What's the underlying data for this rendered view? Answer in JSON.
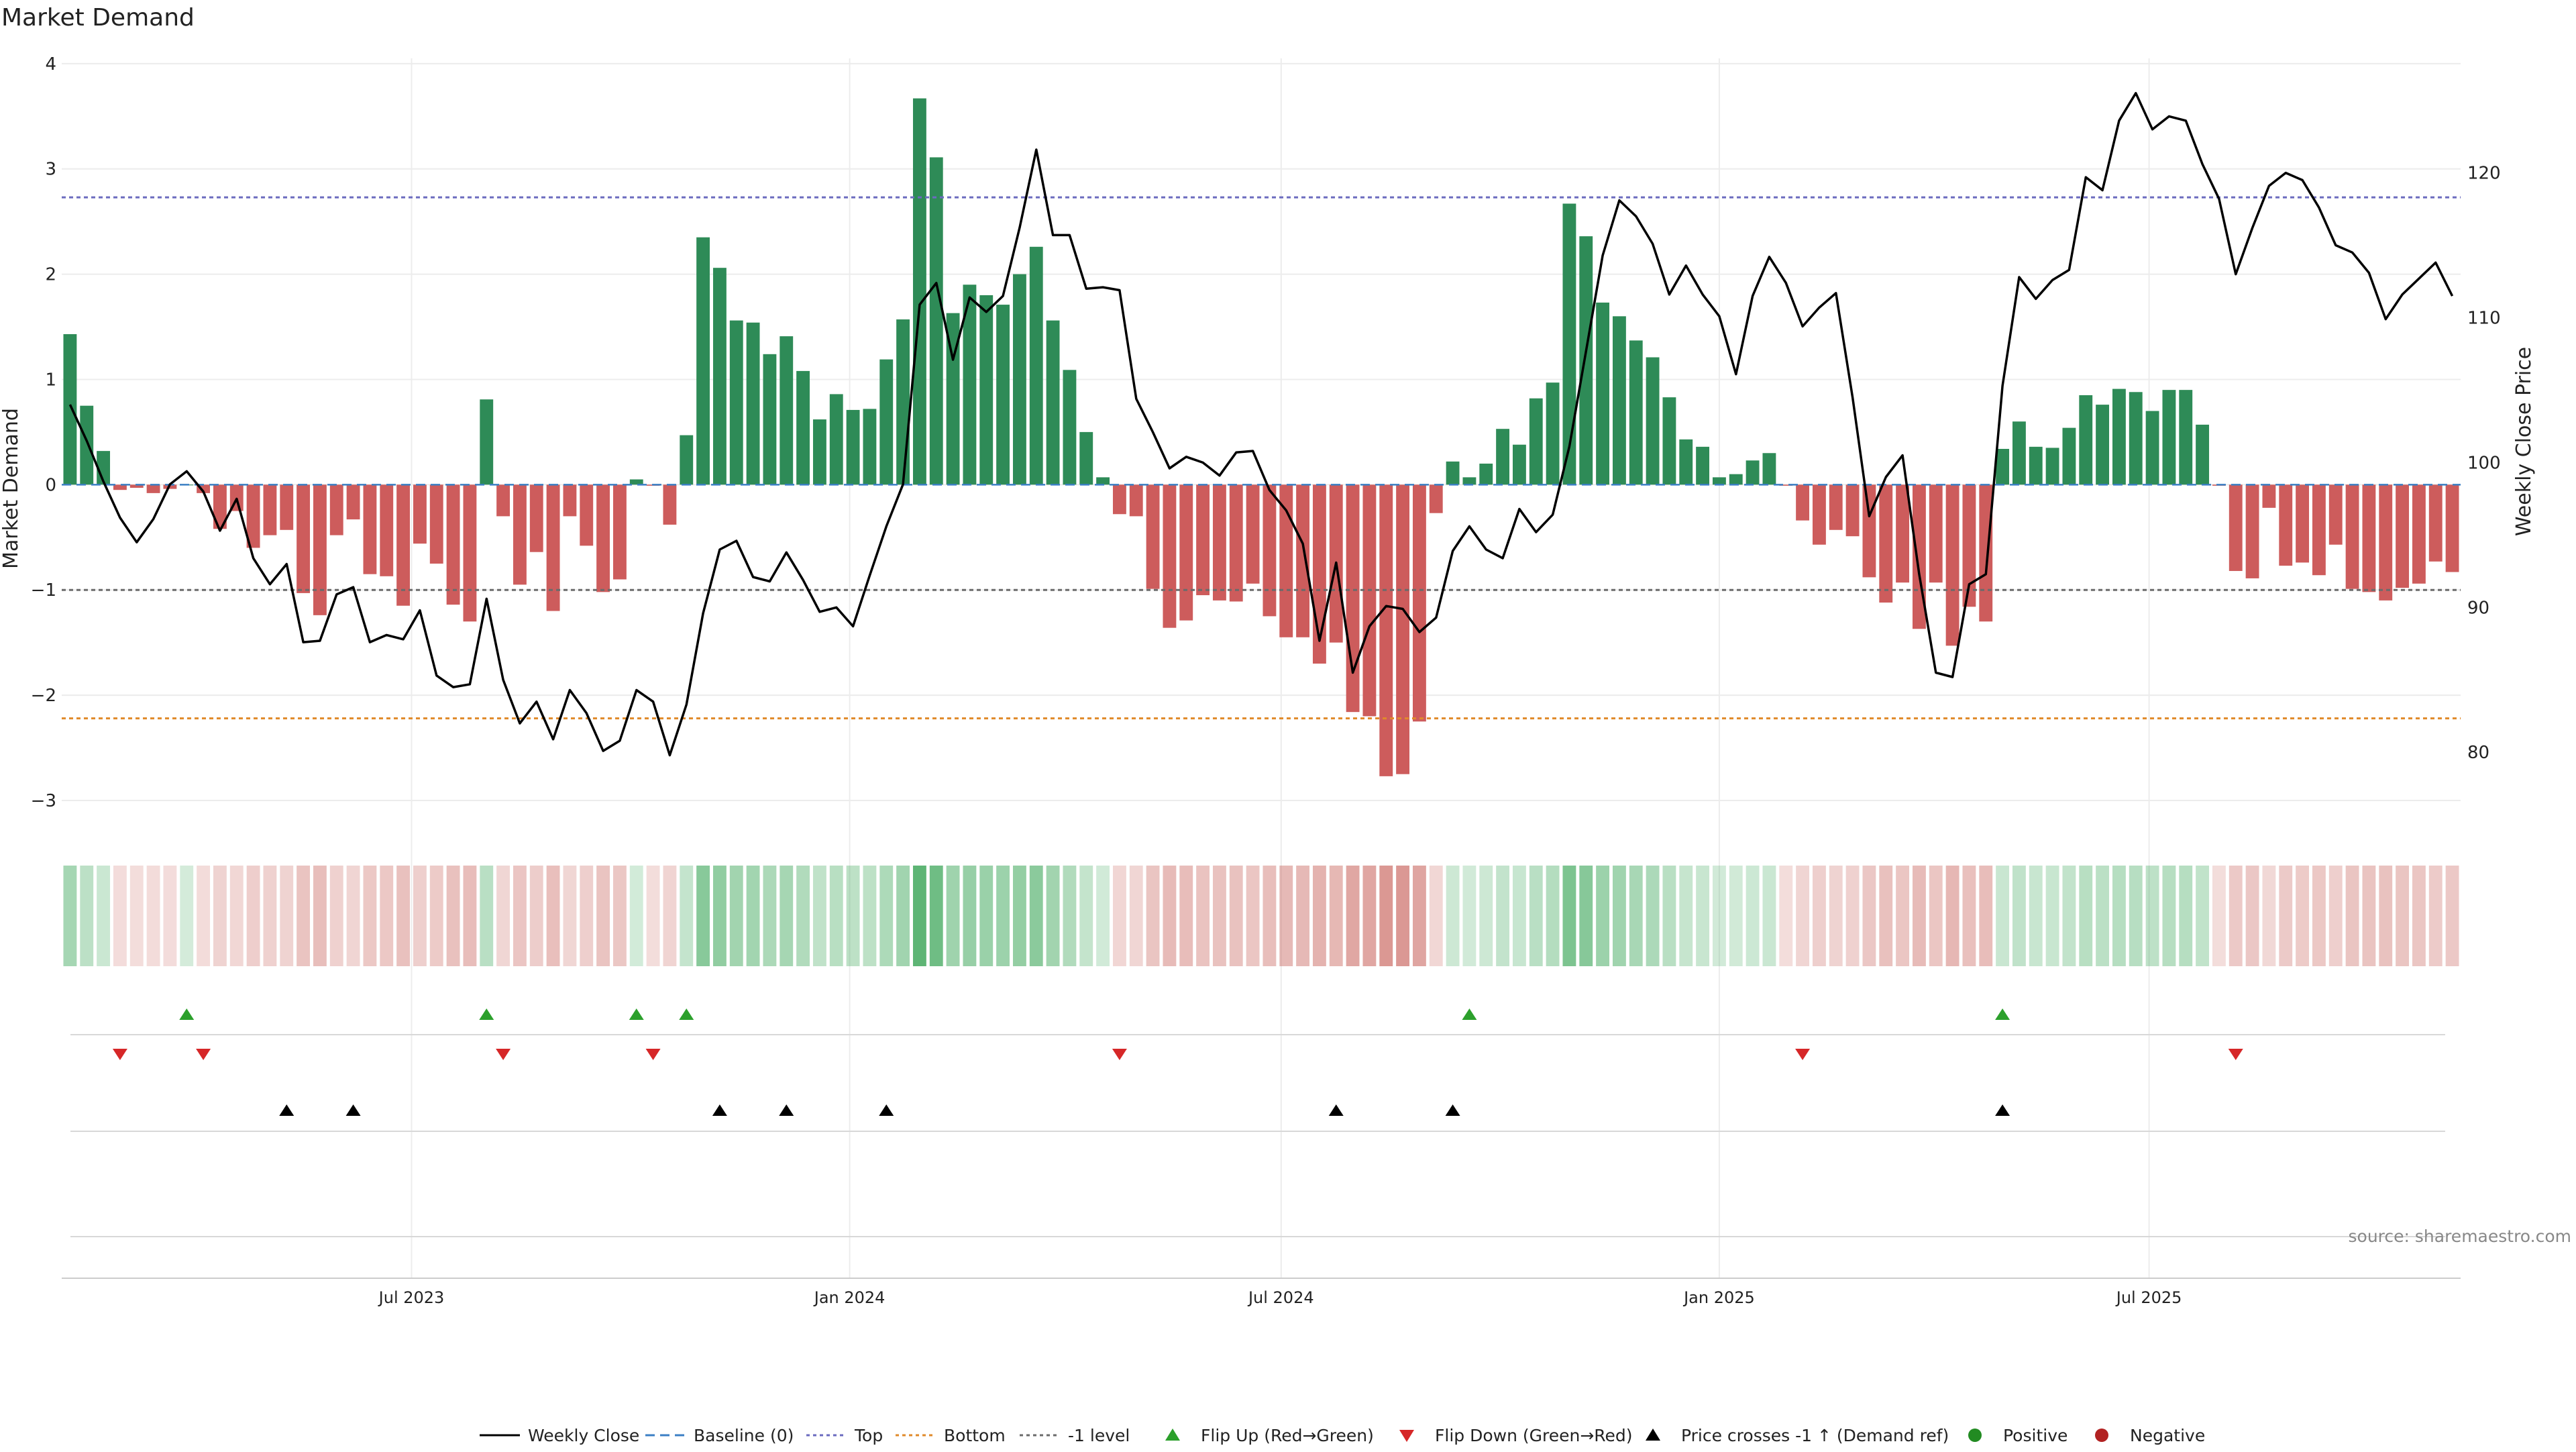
{
  "chart_data": {
    "type": "bar",
    "title": "Market Demand",
    "ylabel": "Market Demand",
    "y2label": "Weekly Close Price",
    "ylim": [
      -3.3,
      4.05
    ],
    "y2lim": [
      74.5,
      127.9
    ],
    "yticks": [
      4,
      3,
      2,
      1,
      0,
      -1,
      -2,
      -3
    ],
    "ytick_labels": [
      "4",
      "3",
      "2",
      "1",
      "0",
      "−1",
      "−2",
      "−3"
    ],
    "y2ticks": [
      120,
      110,
      100,
      90,
      80
    ],
    "xticks": [
      {
        "label": "Jul 2023",
        "index": 20.5
      },
      {
        "label": "Jan 2024",
        "index": 46.8
      },
      {
        "label": "Jul 2024",
        "index": 72.7
      },
      {
        "label": "Jan 2025",
        "index": 99.0
      },
      {
        "label": "Jul 2025",
        "index": 124.8
      }
    ],
    "reference_lines": {
      "top": 2.73,
      "bottom": -2.22,
      "minus_one": -1,
      "baseline": 0
    },
    "demand": [
      1.43,
      0.75,
      0.32,
      -0.05,
      -0.03,
      -0.08,
      -0.04,
      0.0,
      -0.08,
      -0.42,
      -0.25,
      -0.6,
      -0.48,
      -0.43,
      -1.03,
      -1.24,
      -0.48,
      -0.33,
      -0.85,
      -0.87,
      -1.15,
      -0.56,
      -0.75,
      -1.14,
      -1.3,
      0.81,
      -0.3,
      -0.95,
      -0.64,
      -1.2,
      -0.3,
      -0.58,
      -1.02,
      -0.9,
      0.05,
      -0.01,
      -0.38,
      0.47,
      2.35,
      2.06,
      1.56,
      1.54,
      1.24,
      1.41,
      1.08,
      0.62,
      0.86,
      0.71,
      0.72,
      1.19,
      1.57,
      3.67,
      3.11,
      1.63,
      1.9,
      1.8,
      1.71,
      2.0,
      2.26,
      1.56,
      1.09,
      0.5,
      0.07,
      -0.28,
      -0.3,
      -0.99,
      -1.36,
      -1.29,
      -1.05,
      -1.1,
      -1.11,
      -0.94,
      -1.25,
      -1.45,
      -1.45,
      -1.7,
      -1.5,
      -2.16,
      -2.2,
      -2.77,
      -2.75,
      -2.25,
      -0.27,
      0.22,
      0.07,
      0.2,
      0.53,
      0.38,
      0.82,
      0.97,
      2.67,
      2.36,
      1.73,
      1.6,
      1.37,
      1.21,
      0.83,
      0.43,
      0.36,
      0.07,
      0.1,
      0.23,
      0.3,
      -0.01,
      -0.34,
      -0.57,
      -0.43,
      -0.49,
      -0.88,
      -1.12,
      -0.93,
      -1.37,
      -0.93,
      -1.53,
      -1.16,
      -1.3,
      0.34,
      0.6,
      0.36,
      0.35,
      0.54,
      0.85,
      0.76,
      0.91,
      0.88,
      0.7,
      0.9,
      0.9,
      0.57,
      -0.01,
      -0.82,
      -0.89,
      -0.22,
      -0.77,
      -0.74,
      -0.86,
      -0.57,
      -0.99,
      -1.02,
      -1.1,
      -0.98,
      -0.94,
      -0.73,
      -0.83
    ],
    "weekly_close": [
      104.0,
      101.5,
      98.7,
      96.2,
      94.5,
      96.1,
      98.5,
      99.4,
      98.0,
      95.3,
      97.5,
      93.4,
      91.6,
      93.0,
      87.6,
      87.7,
      90.9,
      91.4,
      87.6,
      88.1,
      87.8,
      89.8,
      85.3,
      84.5,
      84.7,
      90.6,
      85.0,
      82.0,
      83.5,
      80.9,
      84.3,
      82.7,
      80.1,
      80.8,
      84.3,
      83.5,
      79.8,
      83.3,
      89.6,
      94.0,
      94.6,
      92.1,
      91.8,
      93.8,
      91.9,
      89.7,
      90.0,
      88.7,
      92.2,
      95.6,
      98.5,
      110.9,
      112.4,
      107.1,
      111.4,
      110.4,
      111.5,
      116.2,
      121.6,
      115.7,
      115.7,
      112.0,
      112.1,
      111.9,
      104.4,
      102.1,
      99.6,
      100.4,
      100.0,
      99.1,
      100.7,
      100.8,
      98.1,
      96.7,
      94.4,
      87.7,
      93.1,
      85.5,
      88.7,
      90.1,
      89.9,
      88.3,
      89.3,
      93.9,
      95.6,
      94.0,
      93.4,
      96.8,
      95.2,
      96.4,
      101.1,
      107.7,
      114.3,
      118.1,
      117.0,
      115.1,
      111.6,
      113.6,
      111.6,
      110.1,
      106.1,
      111.5,
      114.2,
      112.4,
      109.4,
      110.7,
      111.7,
      104.5,
      96.3,
      99.0,
      100.5,
      92.3,
      85.5,
      85.2,
      91.6,
      92.3,
      105.3,
      112.8,
      111.3,
      112.6,
      113.3,
      119.7,
      118.8,
      123.6,
      125.5,
      123.0,
      123.9,
      123.6,
      120.6,
      118.2,
      113.0,
      116.2,
      119.1,
      120.0,
      119.5,
      117.6,
      115.0,
      114.5,
      113.1,
      109.9,
      111.6,
      112.7,
      113.8,
      111.5
    ],
    "flip_up_index": [
      7,
      25,
      34,
      37,
      84,
      116
    ],
    "flip_down_index": [
      3,
      8,
      26,
      35,
      63,
      104,
      130
    ],
    "price_cross_index": [
      13,
      17,
      39,
      43,
      49,
      76,
      83,
      116
    ],
    "legend": [
      "Weekly Close",
      "Baseline (0)",
      "Top",
      "Bottom",
      "-1 level",
      "Flip Up (Red→Green)",
      "Flip Down (Green→Red)",
      "Price crosses -1 ↑ (Demand ref)",
      "Positive",
      "Negative"
    ],
    "legend_position": "bottom-center",
    "source_note": "source: sharemaestro.com",
    "colors": {
      "positive": "#2e8b57",
      "negative": "#cd5c5c",
      "price": "#000000",
      "top": "#6b6bbf",
      "bottom": "#e08a2a",
      "minus_one": "#6b6b6b",
      "baseline": "#3b7fc4",
      "flip_up": "#2ca02c",
      "flip_down": "#d62728",
      "price_cross": "#000000",
      "positive_dot": "#228b22",
      "negative_dot": "#b22222",
      "heat_green": "#3aa557",
      "heat_red": "#c9665f"
    }
  }
}
